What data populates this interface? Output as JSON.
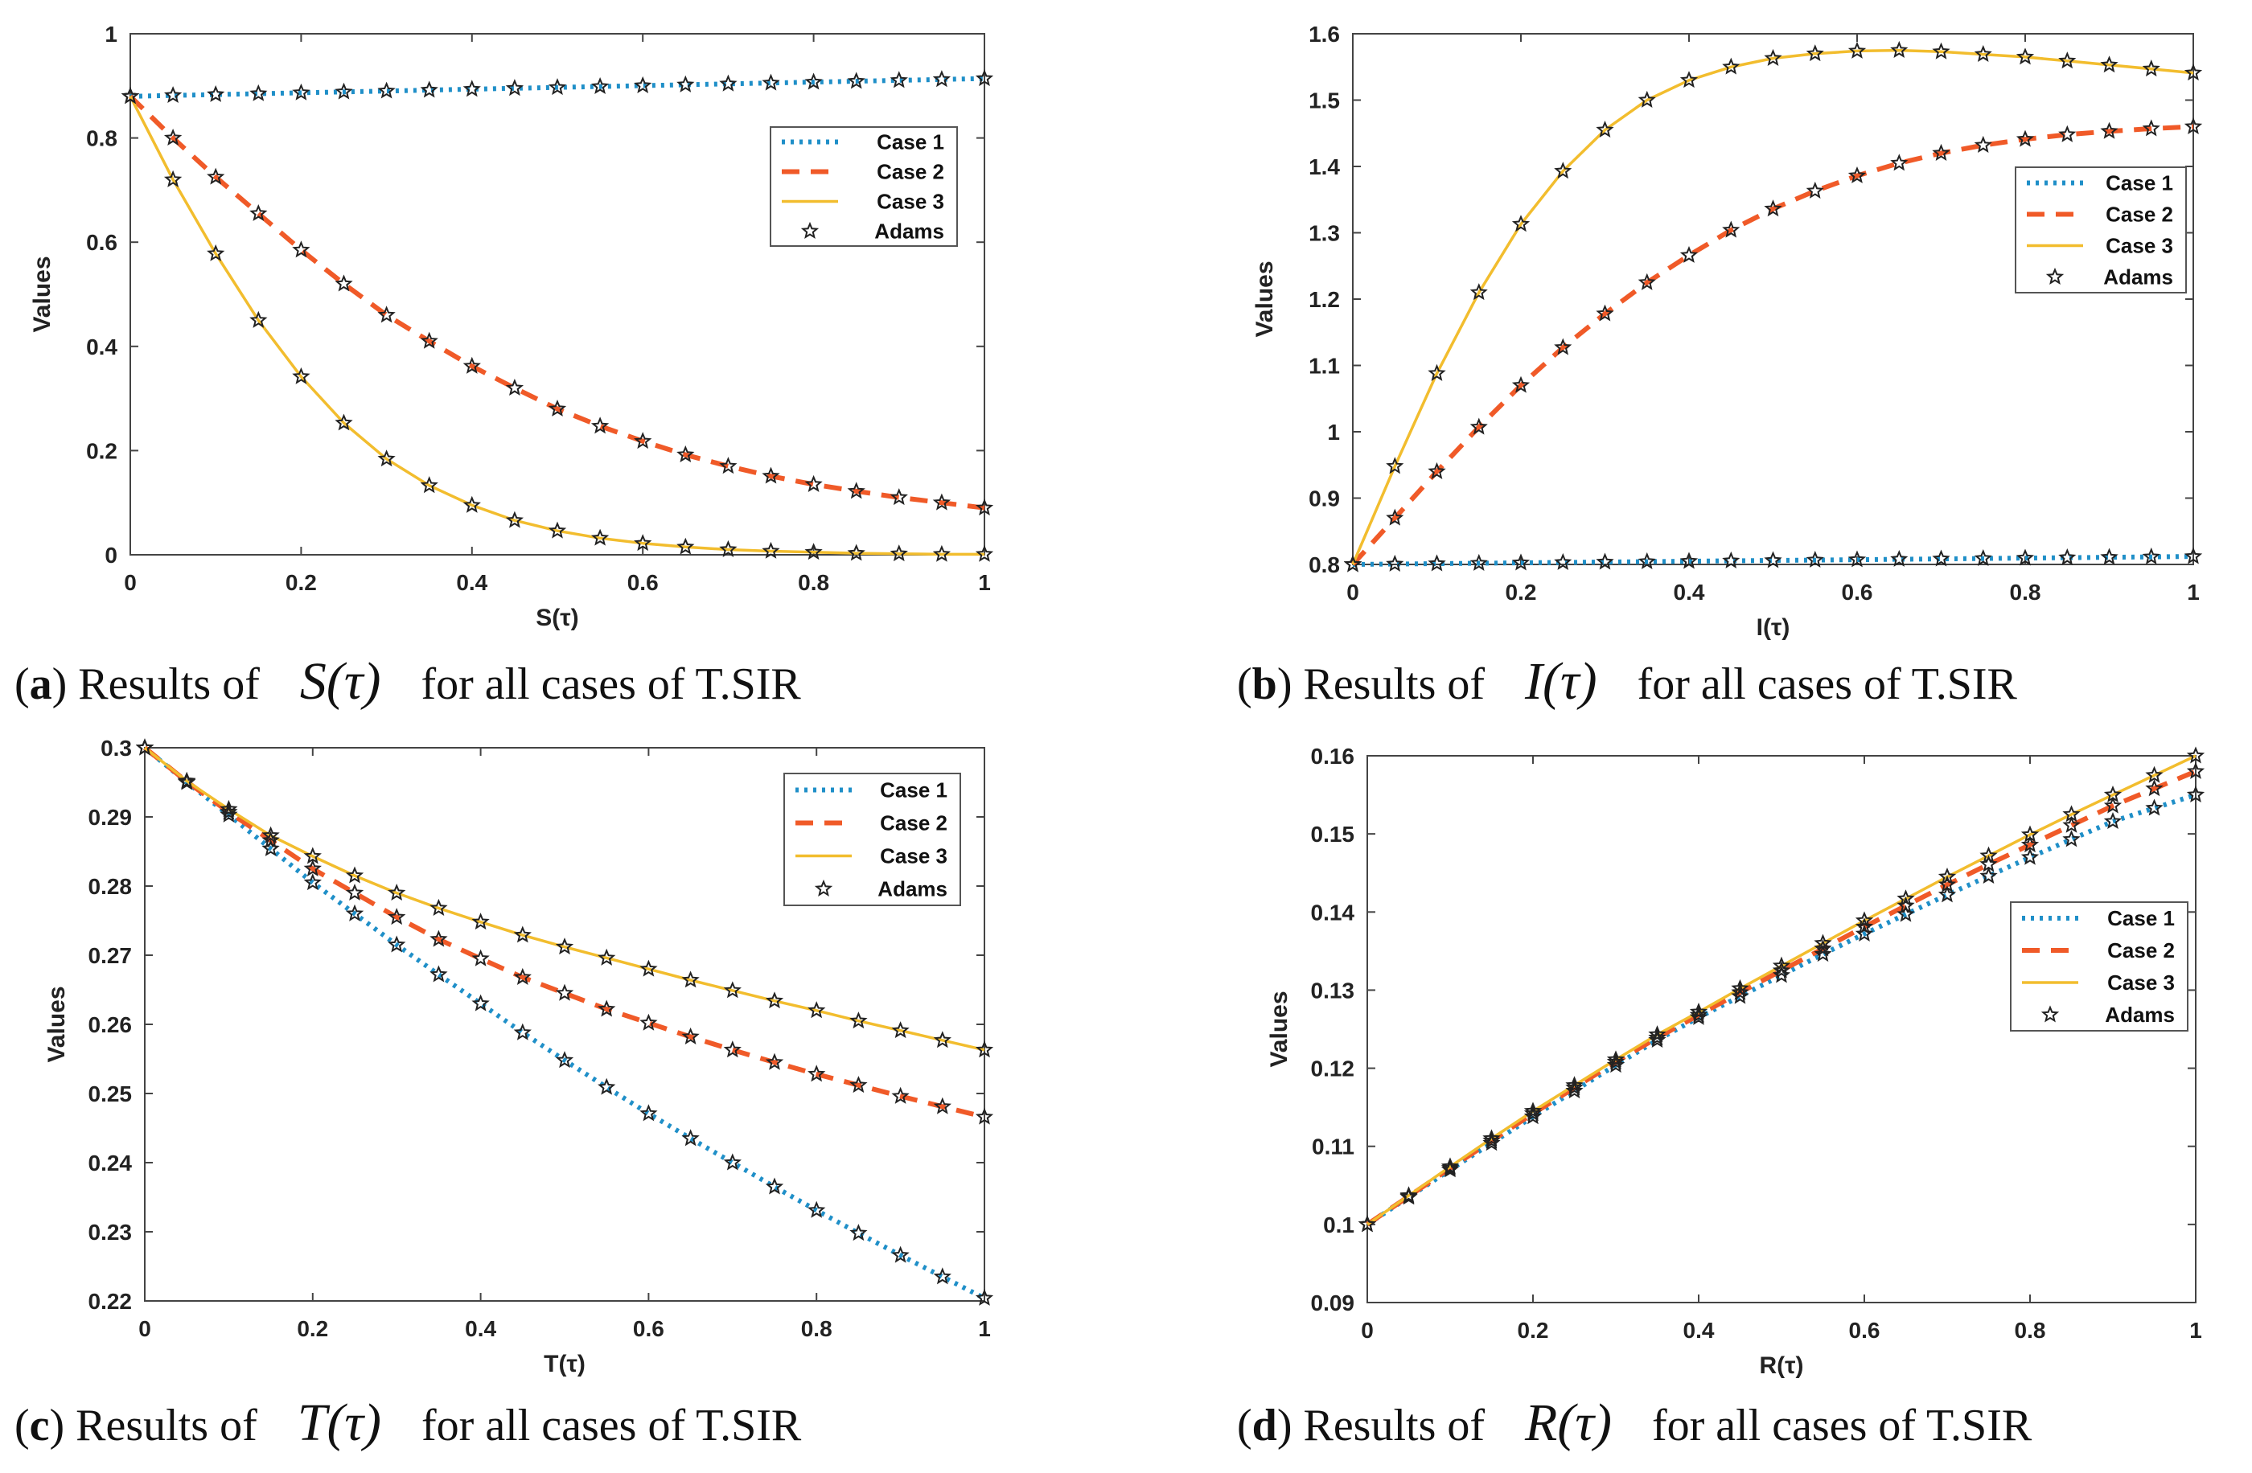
{
  "colors": {
    "case1": "#1f8fc8",
    "case2": "#f05a28",
    "case3": "#f2bd2e",
    "adams": "#222222"
  },
  "legend": [
    "Case 1",
    "Case 2",
    "Case 3",
    "Adams"
  ],
  "ylabel": "Values",
  "chart_data": [
    {
      "type": "line",
      "id": "a",
      "caption": {
        "letter": "a",
        "pre": ") Results of",
        "symbol": "S(τ)",
        "post": "for all cases of T.SIR"
      },
      "xlabel": "S(τ)",
      "ylabel": "Values",
      "xlim": [
        0,
        1
      ],
      "ylim": [
        0,
        1
      ],
      "xticks": [
        "0",
        "0.2",
        "0.4",
        "0.6",
        "0.8",
        "1"
      ],
      "yticks": [
        "0",
        "0.2",
        "0.4",
        "0.6",
        "0.8",
        "1"
      ],
      "ytick_values": [
        0,
        0.2,
        0.4,
        0.6,
        0.8,
        1
      ],
      "legend_position": "top-right",
      "x": [
        0,
        0.05,
        0.1,
        0.15,
        0.2,
        0.25,
        0.3,
        0.35,
        0.4,
        0.45,
        0.5,
        0.55,
        0.6,
        0.65,
        0.7,
        0.75,
        0.8,
        0.85,
        0.9,
        0.95,
        1
      ],
      "series": [
        {
          "name": "Case 1",
          "values": [
            0.88,
            0.8817,
            0.8834,
            0.8851,
            0.8868,
            0.8885,
            0.8902,
            0.8919,
            0.8936,
            0.8953,
            0.897,
            0.8987,
            0.9004,
            0.9021,
            0.9038,
            0.9055,
            0.9072,
            0.9089,
            0.9106,
            0.9123,
            0.914
          ]
        },
        {
          "name": "Case 2",
          "values": [
            0.88,
            0.8,
            0.725,
            0.655,
            0.585,
            0.52,
            0.46,
            0.41,
            0.362,
            0.32,
            0.28,
            0.247,
            0.218,
            0.192,
            0.17,
            0.151,
            0.135,
            0.122,
            0.11,
            0.1,
            0.09
          ]
        },
        {
          "name": "Case 3",
          "values": [
            0.88,
            0.72,
            0.578,
            0.45,
            0.342,
            0.253,
            0.184,
            0.133,
            0.095,
            0.066,
            0.046,
            0.032,
            0.022,
            0.015,
            0.01,
            0.007,
            0.005,
            0.003,
            0.002,
            0.001,
            0.001
          ]
        },
        {
          "name": "Adams",
          "marker": "star",
          "values": [
            0.88,
            0.8817,
            0.8834,
            0.8851,
            0.8868,
            0.8885,
            0.8902,
            0.8919,
            0.8936,
            0.8953,
            0.897,
            0.8987,
            0.9004,
            0.9021,
            0.9038,
            0.9055,
            0.9072,
            0.9089,
            0.9106,
            0.9123,
            0.914
          ],
          "values2": [
            0.88,
            0.8,
            0.725,
            0.655,
            0.585,
            0.52,
            0.46,
            0.41,
            0.362,
            0.32,
            0.28,
            0.247,
            0.218,
            0.192,
            0.17,
            0.151,
            0.135,
            0.122,
            0.11,
            0.1,
            0.09
          ],
          "values3": [
            0.88,
            0.72,
            0.578,
            0.45,
            0.342,
            0.253,
            0.184,
            0.133,
            0.095,
            0.066,
            0.046,
            0.032,
            0.022,
            0.015,
            0.01,
            0.007,
            0.005,
            0.003,
            0.002,
            0.001,
            0.001
          ]
        }
      ]
    },
    {
      "type": "line",
      "id": "b",
      "caption": {
        "letter": "b",
        "pre": ") Results of",
        "symbol": "I(τ)",
        "post": "for all cases of T.SIR"
      },
      "xlabel": "I(τ)",
      "ylabel": "Values",
      "xlim": [
        0,
        1
      ],
      "ylim": [
        0.8,
        1.6
      ],
      "xticks": [
        "0",
        "0.2",
        "0.4",
        "0.6",
        "0.8",
        "1"
      ],
      "yticks": [
        "0.8",
        "0.9",
        "1",
        "1.1",
        "1.2",
        "1.3",
        "1.4",
        "1.5",
        "1.6"
      ],
      "ytick_values": [
        0.8,
        0.9,
        1,
        1.1,
        1.2,
        1.3,
        1.4,
        1.5,
        1.6
      ],
      "legend_position": "right",
      "x": [
        0,
        0.05,
        0.1,
        0.15,
        0.2,
        0.25,
        0.3,
        0.35,
        0.4,
        0.45,
        0.5,
        0.55,
        0.6,
        0.65,
        0.7,
        0.75,
        0.8,
        0.85,
        0.9,
        0.95,
        1
      ],
      "series": [
        {
          "name": "Case 1",
          "values": [
            0.8,
            0.8006,
            0.8012,
            0.8018,
            0.8024,
            0.803,
            0.8036,
            0.8042,
            0.8048,
            0.8054,
            0.806,
            0.8066,
            0.8072,
            0.8078,
            0.8084,
            0.809,
            0.8096,
            0.8102,
            0.8108,
            0.8114,
            0.812
          ]
        },
        {
          "name": "Case 2",
          "values": [
            0.8,
            0.87,
            0.94,
            1.007,
            1.07,
            1.127,
            1.178,
            1.225,
            1.266,
            1.304,
            1.336,
            1.363,
            1.386,
            1.405,
            1.42,
            1.432,
            1.441,
            1.448,
            1.453,
            1.457,
            1.46
          ]
        },
        {
          "name": "Case 3",
          "values": [
            0.8,
            0.948,
            1.088,
            1.21,
            1.313,
            1.393,
            1.455,
            1.5,
            1.53,
            1.55,
            1.563,
            1.57,
            1.574,
            1.575,
            1.573,
            1.569,
            1.565,
            1.559,
            1.553,
            1.547,
            1.541
          ]
        },
        {
          "name": "Adams",
          "marker": "star",
          "values": [
            0.8,
            0.8006,
            0.8012,
            0.8018,
            0.8024,
            0.803,
            0.8036,
            0.8042,
            0.8048,
            0.8054,
            0.806,
            0.8066,
            0.8072,
            0.8078,
            0.8084,
            0.809,
            0.8096,
            0.8102,
            0.8108,
            0.8114,
            0.812
          ],
          "values2": [
            0.8,
            0.87,
            0.94,
            1.007,
            1.07,
            1.127,
            1.178,
            1.225,
            1.266,
            1.304,
            1.336,
            1.363,
            1.386,
            1.405,
            1.42,
            1.432,
            1.441,
            1.448,
            1.453,
            1.457,
            1.46
          ],
          "values3": [
            0.8,
            0.948,
            1.088,
            1.21,
            1.313,
            1.393,
            1.455,
            1.5,
            1.53,
            1.55,
            1.563,
            1.57,
            1.574,
            1.575,
            1.573,
            1.569,
            1.565,
            1.559,
            1.553,
            1.547,
            1.541
          ]
        }
      ]
    },
    {
      "type": "line",
      "id": "c",
      "caption": {
        "letter": "c",
        "pre": ") Results of",
        "symbol": "T(τ)",
        "post": "for all cases of T.SIR"
      },
      "xlabel": "T(τ)",
      "ylabel": "Values",
      "xlim": [
        0,
        1
      ],
      "ylim": [
        0.22,
        0.3
      ],
      "xticks": [
        "0",
        "0.2",
        "0.4",
        "0.6",
        "0.8",
        "1"
      ],
      "yticks": [
        "0.22",
        "0.23",
        "0.24",
        "0.25",
        "0.26",
        "0.27",
        "0.28",
        "0.29",
        "0.3"
      ],
      "ytick_values": [
        0.22,
        0.23,
        0.24,
        0.25,
        0.26,
        0.27,
        0.28,
        0.29,
        0.3
      ],
      "legend_position": "top-right",
      "x": [
        0,
        0.05,
        0.1,
        0.15,
        0.2,
        0.25,
        0.3,
        0.35,
        0.4,
        0.45,
        0.5,
        0.55,
        0.6,
        0.65,
        0.7,
        0.75,
        0.8,
        0.85,
        0.9,
        0.95,
        1
      ],
      "series": [
        {
          "name": "Case 1",
          "values": [
            0.3,
            0.295,
            0.2903,
            0.2854,
            0.2805,
            0.276,
            0.2715,
            0.2672,
            0.263,
            0.2588,
            0.2548,
            0.2509,
            0.2471,
            0.2435,
            0.24,
            0.2365,
            0.2331,
            0.2298,
            0.2266,
            0.2235,
            0.2204
          ]
        },
        {
          "name": "Case 2",
          "values": [
            0.3,
            0.2951,
            0.2907,
            0.2866,
            0.2825,
            0.279,
            0.2755,
            0.2723,
            0.2695,
            0.2668,
            0.2645,
            0.2622,
            0.2602,
            0.2582,
            0.2563,
            0.2545,
            0.2528,
            0.2512,
            0.2496,
            0.2481,
            0.2466
          ]
        },
        {
          "name": "Case 3",
          "values": [
            0.3,
            0.2952,
            0.2911,
            0.2873,
            0.2843,
            0.2815,
            0.279,
            0.2768,
            0.2748,
            0.2729,
            0.2712,
            0.2696,
            0.268,
            0.2664,
            0.2649,
            0.2634,
            0.262,
            0.2605,
            0.2591,
            0.2577,
            0.2563
          ]
        },
        {
          "name": "Adams",
          "marker": "star",
          "values": [
            0.3,
            0.295,
            0.2903,
            0.2854,
            0.2805,
            0.276,
            0.2715,
            0.2672,
            0.263,
            0.2588,
            0.2548,
            0.2509,
            0.2471,
            0.2435,
            0.24,
            0.2365,
            0.2331,
            0.2298,
            0.2266,
            0.2235,
            0.2204
          ],
          "values2": [
            0.3,
            0.2951,
            0.2907,
            0.2866,
            0.2825,
            0.279,
            0.2755,
            0.2723,
            0.2695,
            0.2668,
            0.2645,
            0.2622,
            0.2602,
            0.2582,
            0.2563,
            0.2545,
            0.2528,
            0.2512,
            0.2496,
            0.2481,
            0.2466
          ],
          "values3": [
            0.3,
            0.2952,
            0.2911,
            0.2873,
            0.2843,
            0.2815,
            0.279,
            0.2768,
            0.2748,
            0.2729,
            0.2712,
            0.2696,
            0.268,
            0.2664,
            0.2649,
            0.2634,
            0.262,
            0.2605,
            0.2591,
            0.2577,
            0.2563
          ]
        }
      ]
    },
    {
      "type": "line",
      "id": "d",
      "caption": {
        "letter": "d",
        "pre": ") Results of",
        "symbol": "R(τ)",
        "post": "for all cases of T.SIR"
      },
      "xlabel": "R(τ)",
      "ylabel": "Values",
      "xlim": [
        0,
        1
      ],
      "ylim": [
        0.09,
        0.16
      ],
      "xticks": [
        "0",
        "0.2",
        "0.4",
        "0.6",
        "0.8",
        "1"
      ],
      "yticks": [
        "0.09",
        "0.1",
        "0.11",
        "0.12",
        "0.13",
        "0.14",
        "0.15",
        "0.16"
      ],
      "ytick_values": [
        0.09,
        0.1,
        0.11,
        0.12,
        0.13,
        0.14,
        0.15,
        0.16
      ],
      "legend_position": "right",
      "x": [
        0,
        0.05,
        0.1,
        0.15,
        0.2,
        0.25,
        0.3,
        0.35,
        0.4,
        0.45,
        0.5,
        0.55,
        0.6,
        0.65,
        0.7,
        0.75,
        0.8,
        0.85,
        0.9,
        0.95,
        1
      ],
      "series": [
        {
          "name": "Case 1",
          "values": [
            0.1,
            0.1035,
            0.107,
            0.1104,
            0.1138,
            0.1171,
            0.1204,
            0.1236,
            0.1265,
            0.1292,
            0.1319,
            0.1346,
            0.1372,
            0.1397,
            0.1422,
            0.1446,
            0.147,
            0.1493,
            0.1516,
            0.1533,
            0.155
          ]
        },
        {
          "name": "Case 2",
          "values": [
            0.1,
            0.1036,
            0.1072,
            0.1107,
            0.1142,
            0.1175,
            0.1208,
            0.1239,
            0.1268,
            0.1297,
            0.1325,
            0.1353,
            0.1381,
            0.1408,
            0.1435,
            0.1461,
            0.1486,
            0.1511,
            0.1536,
            0.1558,
            0.158
          ]
        },
        {
          "name": "Case 3",
          "values": [
            0.1,
            0.1037,
            0.1074,
            0.111,
            0.1145,
            0.1178,
            0.1211,
            0.1243,
            0.1272,
            0.1302,
            0.1331,
            0.136,
            0.1389,
            0.1417,
            0.1445,
            0.1472,
            0.1499,
            0.1525,
            0.155,
            0.1575,
            0.16
          ]
        },
        {
          "name": "Adams",
          "marker": "star",
          "values": [
            0.1,
            0.1035,
            0.107,
            0.1104,
            0.1138,
            0.1171,
            0.1204,
            0.1236,
            0.1265,
            0.1292,
            0.1319,
            0.1346,
            0.1372,
            0.1397,
            0.1422,
            0.1446,
            0.147,
            0.1493,
            0.1516,
            0.1533,
            0.155
          ],
          "values2": [
            0.1,
            0.1036,
            0.1072,
            0.1107,
            0.1142,
            0.1175,
            0.1208,
            0.1239,
            0.1268,
            0.1297,
            0.1325,
            0.1353,
            0.1381,
            0.1408,
            0.1435,
            0.1461,
            0.1486,
            0.1511,
            0.1536,
            0.1558,
            0.158
          ],
          "values3": [
            0.1,
            0.1037,
            0.1074,
            0.111,
            0.1145,
            0.1178,
            0.1211,
            0.1243,
            0.1272,
            0.1302,
            0.1331,
            0.136,
            0.1389,
            0.1417,
            0.1445,
            0.1472,
            0.1499,
            0.1525,
            0.155,
            0.1575,
            0.16
          ]
        }
      ]
    }
  ]
}
